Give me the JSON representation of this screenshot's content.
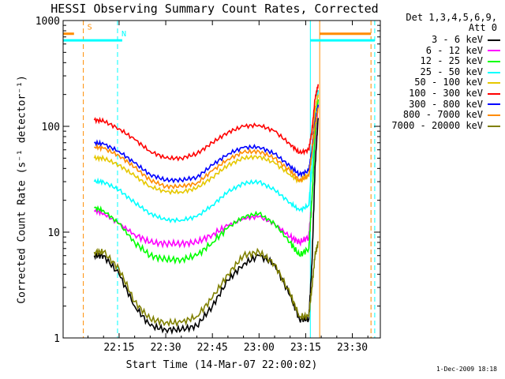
{
  "header": {
    "title": "HESSI Observing Summary Count Rates, Corrected",
    "detector_line": "Det 1,3,4,5,6,9,",
    "attenuator_line": "Att 0"
  },
  "axes": {
    "ylabel": "Corrected Count Rate (s⁻¹ detector⁻¹)",
    "xlabel": "Start Time (14-Mar-07 22:00:02)"
  },
  "footnote": "1-Dec-2009 18:18",
  "chart_data": {
    "type": "line",
    "title": "HESSI Observing Summary Count Rates, Corrected",
    "xlabel": "Start Time (14-Mar-07 22:00:02)",
    "ylabel": "Corrected Count Rate (s⁻¹ detector⁻¹)",
    "x_unit": "minutes after 22:00",
    "xlim": [
      -3,
      99
    ],
    "ylim": [
      1,
      1000
    ],
    "yscale": "log",
    "x_ticks": [
      {
        "x": 15,
        "label": "22:15"
      },
      {
        "x": 30,
        "label": "22:30"
      },
      {
        "x": 45,
        "label": "22:45"
      },
      {
        "x": 60,
        "label": "23:00"
      },
      {
        "x": 75,
        "label": "23:15"
      },
      {
        "x": 90,
        "label": "23:30"
      }
    ],
    "y_ticks": [
      {
        "y": 1,
        "label": "1"
      },
      {
        "y": 10,
        "label": "10"
      },
      {
        "y": 100,
        "label": "100"
      },
      {
        "y": 1000,
        "label": "1000"
      }
    ],
    "grid": false,
    "legend_position": "right, outside plot",
    "x": [
      7,
      10,
      15,
      20,
      25,
      30,
      35,
      40,
      45,
      50,
      55,
      60,
      65,
      70,
      73,
      76,
      77,
      78,
      79
    ],
    "series": [
      {
        "name": "3 - 6 keV",
        "color": "#000000",
        "values": [
          6,
          6,
          4,
          2,
          1.3,
          1.2,
          1.2,
          1.3,
          2,
          3.5,
          5,
          6,
          5,
          2.5,
          1.5,
          1.5,
          5,
          40,
          120
        ]
      },
      {
        "name": "6 - 12 keV",
        "color": "#ff00ff",
        "values": [
          16,
          15,
          12,
          9.5,
          8,
          7.8,
          7.8,
          8,
          9.5,
          11.5,
          13.5,
          14,
          12,
          9,
          8,
          9,
          20,
          70,
          160
        ]
      },
      {
        "name": "12 - 25 keV",
        "color": "#00ff00",
        "values": [
          17,
          16,
          12,
          8,
          6,
          5.5,
          5.5,
          6,
          8,
          11,
          14,
          15,
          12,
          8,
          6,
          7,
          20,
          80,
          180
        ]
      },
      {
        "name": "25 - 50 keV",
        "color": "#00ffff",
        "values": [
          30,
          30,
          25,
          19,
          15,
          13,
          13,
          14,
          18,
          24,
          29,
          30,
          25,
          19,
          16,
          18,
          40,
          120,
          220
        ]
      },
      {
        "name": "50 - 100 keV",
        "color": "#e6c800",
        "values": [
          50,
          50,
          43,
          34,
          27,
          24,
          24,
          26,
          33,
          43,
          50,
          52,
          45,
          35,
          30,
          35,
          60,
          140,
          200
        ]
      },
      {
        "name": "100 - 300 keV",
        "color": "#ff0000",
        "values": [
          115,
          112,
          95,
          75,
          58,
          50,
          50,
          55,
          70,
          88,
          100,
          103,
          90,
          68,
          56,
          60,
          90,
          180,
          250
        ]
      },
      {
        "name": "300 - 800 keV",
        "color": "#0000ff",
        "values": [
          70,
          68,
          58,
          45,
          35,
          31,
          31,
          33,
          43,
          55,
          63,
          64,
          55,
          42,
          35,
          38,
          60,
          110,
          160
        ]
      },
      {
        "name": "800 - 7000 keV",
        "color": "#ff8c00",
        "values": [
          64,
          62,
          53,
          41,
          31,
          27,
          27,
          29,
          38,
          49,
          57,
          58,
          50,
          38,
          31,
          34,
          55,
          100,
          150
        ]
      },
      {
        "name": "7000 - 20000 keV",
        "color": "#808000",
        "values": [
          6.5,
          6.5,
          4.5,
          2.2,
          1.5,
          1.4,
          1.4,
          1.6,
          2.4,
          4,
          6,
          6.5,
          5,
          2.6,
          1.6,
          1.6,
          3,
          6,
          8
        ]
      }
    ],
    "annotations": {
      "vertical_lines": [
        {
          "x": 3.5,
          "color": "#ff8c00",
          "style": "dashed"
        },
        {
          "x": 14.5,
          "color": "#00ffff",
          "style": "dashed"
        },
        {
          "x": 76.5,
          "color": "#00ffff",
          "style": "solid"
        },
        {
          "x": 79.5,
          "color": "#ff8c00",
          "style": "solid"
        },
        {
          "x": 96,
          "color": "#ff8c00",
          "style": "dashed"
        },
        {
          "x": 97.2,
          "color": "#00ffff",
          "style": "dashed"
        }
      ],
      "flag_bars": [
        {
          "label": "S",
          "color": "#ff8c00",
          "y": 750,
          "segments": [
            [
              -3,
              0.5
            ],
            [
              79.5,
              96
            ]
          ]
        },
        {
          "label": "N",
          "color": "#00ffff",
          "y": 650,
          "segments": [
            [
              -3,
              16
            ],
            [
              76.5,
              97.2
            ]
          ]
        }
      ]
    }
  }
}
